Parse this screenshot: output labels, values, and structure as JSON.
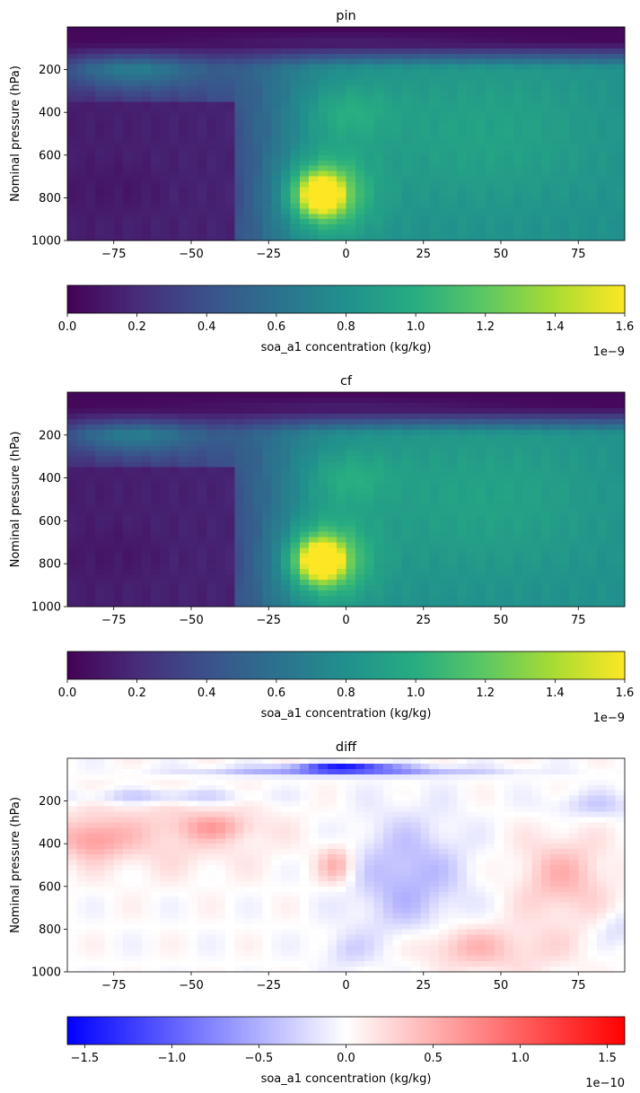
{
  "chart_data": [
    {
      "type": "heatmap",
      "title": "pin",
      "ylabel": "Nominal pressure (hPa)",
      "xlabel": "",
      "xlim": [
        -90,
        90
      ],
      "ylim": [
        1000,
        0
      ],
      "xticks": [
        -75,
        -50,
        -25,
        0,
        25,
        50,
        75
      ],
      "xtick_labels": [
        "−75",
        "−50",
        "−25",
        "0",
        "25",
        "50",
        "75"
      ],
      "yticks": [
        200,
        400,
        600,
        800,
        1000
      ],
      "ytick_labels": [
        "200",
        "400",
        "600",
        "800",
        "1000"
      ],
      "colormap": "viridis",
      "colorbar": {
        "label": "soa_a1 concentration (kg/kg)",
        "range": [
          0,
          1.6e-09
        ],
        "ticks": [
          0,
          0.2,
          0.4,
          0.6,
          0.8,
          1.0,
          1.2,
          1.4,
          1.6
        ],
        "tick_labels": [
          "0.0",
          "0.2",
          "0.4",
          "0.6",
          "0.8",
          "1.0",
          "1.2",
          "1.4",
          "1.6"
        ],
        "offset_text": "1e−9"
      }
    },
    {
      "type": "heatmap",
      "title": "cf",
      "ylabel": "Nominal pressure (hPa)",
      "xlabel": "",
      "xlim": [
        -90,
        90
      ],
      "ylim": [
        1000,
        0
      ],
      "xticks": [
        -75,
        -50,
        -25,
        0,
        25,
        50,
        75
      ],
      "xtick_labels": [
        "−75",
        "−50",
        "−25",
        "0",
        "25",
        "50",
        "75"
      ],
      "yticks": [
        200,
        400,
        600,
        800,
        1000
      ],
      "ytick_labels": [
        "200",
        "400",
        "600",
        "800",
        "1000"
      ],
      "colormap": "viridis",
      "colorbar": {
        "label": "soa_a1 concentration (kg/kg)",
        "range": [
          0,
          1.6e-09
        ],
        "ticks": [
          0,
          0.2,
          0.4,
          0.6,
          0.8,
          1.0,
          1.2,
          1.4,
          1.6
        ],
        "tick_labels": [
          "0.0",
          "0.2",
          "0.4",
          "0.6",
          "0.8",
          "1.0",
          "1.2",
          "1.4",
          "1.6"
        ],
        "offset_text": "1e−9"
      }
    },
    {
      "type": "heatmap",
      "title": "diff",
      "ylabel": "Nominal pressure (hPa)",
      "xlabel": "",
      "xlim": [
        -90,
        90
      ],
      "ylim": [
        1000,
        0
      ],
      "xticks": [
        -75,
        -50,
        -25,
        0,
        25,
        50,
        75
      ],
      "xtick_labels": [
        "−75",
        "−50",
        "−25",
        "0",
        "25",
        "50",
        "75"
      ],
      "yticks": [
        200,
        400,
        600,
        800,
        1000
      ],
      "ytick_labels": [
        "200",
        "400",
        "600",
        "800",
        "1000"
      ],
      "colormap": "bwr",
      "colorbar": {
        "label": "soa_a1 concentration (kg/kg)",
        "range": [
          -1.6e-10,
          1.6e-10
        ],
        "ticks": [
          -1.5,
          -1.0,
          -0.5,
          0.0,
          0.5,
          1.0,
          1.5
        ],
        "tick_labels": [
          "−1.5",
          "−1.0",
          "−0.5",
          "0.0",
          "0.5",
          "1.0",
          "1.5"
        ],
        "offset_text": "1e−10"
      }
    }
  ]
}
